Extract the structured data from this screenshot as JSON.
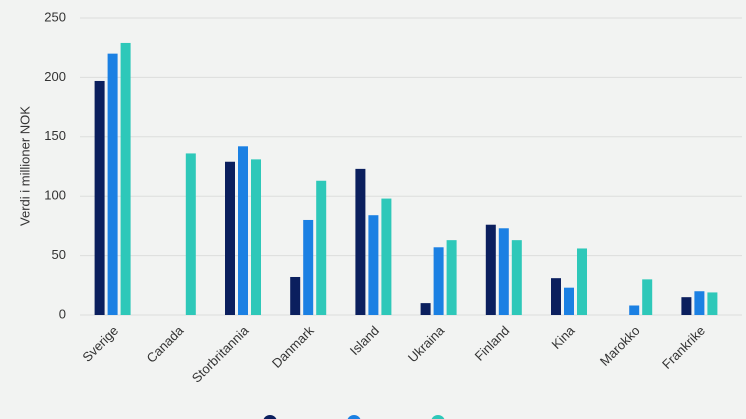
{
  "chart_data": {
    "type": "bar",
    "y_label": "Verdi i millioner NOK",
    "categories": [
      "Sverige",
      "Canada",
      "Storbritannia",
      "Danmark",
      "Island",
      "Ukraina",
      "Finland",
      "Kina",
      "Marokko",
      "Frankrike"
    ],
    "series": [
      {
        "color": "#0b1f5e",
        "values": [
          197,
          null,
          129,
          32,
          123,
          10,
          76,
          31,
          null,
          15
        ]
      },
      {
        "color": "#1b80e3",
        "values": [
          220,
          null,
          142,
          80,
          84,
          57,
          73,
          23,
          8,
          20
        ]
      },
      {
        "color": "#2ec8b9",
        "values": [
          229,
          136,
          131,
          113,
          98,
          63,
          63,
          56,
          30,
          19
        ]
      }
    ],
    "ylim": [
      0,
      250
    ],
    "yticks": [
      0,
      50,
      100,
      150,
      200,
      250
    ],
    "grid": true
  }
}
